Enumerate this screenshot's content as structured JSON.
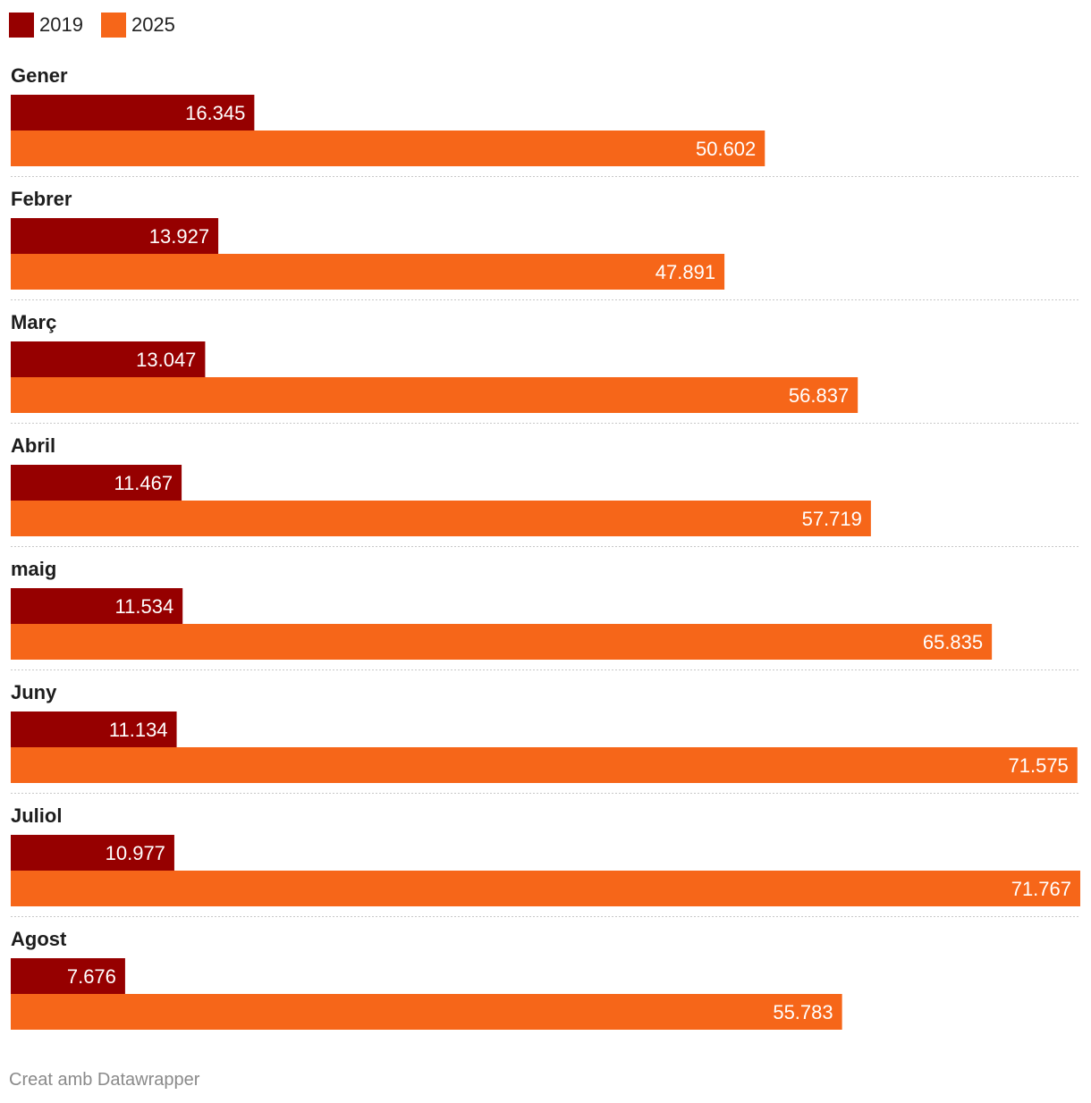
{
  "chart_data": {
    "type": "bar",
    "orientation": "horizontal",
    "title": "",
    "xlabel": "",
    "ylabel": "",
    "xlim": [
      0,
      71767
    ],
    "legend_position": "top-left",
    "categories": [
      "Gener",
      "Febrer",
      "Març",
      "Abril",
      "maig",
      "Juny",
      "Juliol",
      "Agost"
    ],
    "series": [
      {
        "name": "2019",
        "color": "#960000",
        "values": [
          16345,
          13927,
          13047,
          11467,
          11534,
          11134,
          10977,
          7676
        ],
        "labels": [
          "16.345",
          "13.927",
          "13.047",
          "11.467",
          "11.534",
          "11.134",
          "10.977",
          "7.676"
        ]
      },
      {
        "name": "2025",
        "color": "#f66619",
        "values": [
          50602,
          47891,
          56837,
          57719,
          65835,
          71575,
          71767,
          55783
        ],
        "labels": [
          "50.602",
          "47.891",
          "56.837",
          "57.719",
          "65.835",
          "71.575",
          "71.767",
          "55.783"
        ]
      }
    ]
  },
  "legend": {
    "items": [
      {
        "label": "2019",
        "color": "#960000"
      },
      {
        "label": "2025",
        "color": "#f66619"
      }
    ]
  },
  "footer": {
    "credit": "Creat amb Datawrapper"
  }
}
